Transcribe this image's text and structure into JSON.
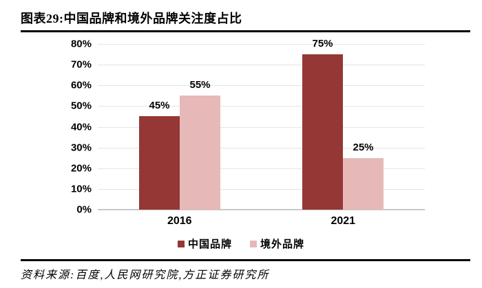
{
  "header": {
    "title": "图表29:中国品牌和境外品牌关注度占比"
  },
  "footer": {
    "source": "资料来源:百度,人民网研究院,方正证券研究所"
  },
  "colors": {
    "china_brand": "#953735",
    "foreign_brand": "#E6B9B8",
    "gridline": "#E4E4E4",
    "axis_baseline": "#C8C8C8",
    "rule": "#000000",
    "text": "#000000"
  },
  "chart_data": {
    "type": "bar",
    "categories": [
      "2016",
      "2021"
    ],
    "series": [
      {
        "name": "中国品牌",
        "values": [
          45,
          75
        ],
        "data_labels": [
          "45%",
          "75%"
        ],
        "color": "#953735"
      },
      {
        "name": "境外品牌",
        "values": [
          55,
          25
        ],
        "data_labels": [
          "55%",
          "25%"
        ],
        "color": "#E6B9B8"
      }
    ],
    "title": "图表29:中国品牌和境外品牌关注度占比",
    "xlabel": "",
    "ylabel": "",
    "ylim": [
      0,
      80
    ],
    "ytick_labels": [
      "0%",
      "10%",
      "20%",
      "30%",
      "40%",
      "50%",
      "60%",
      "70%",
      "80%"
    ],
    "grid": true,
    "legend_position": "bottom"
  }
}
